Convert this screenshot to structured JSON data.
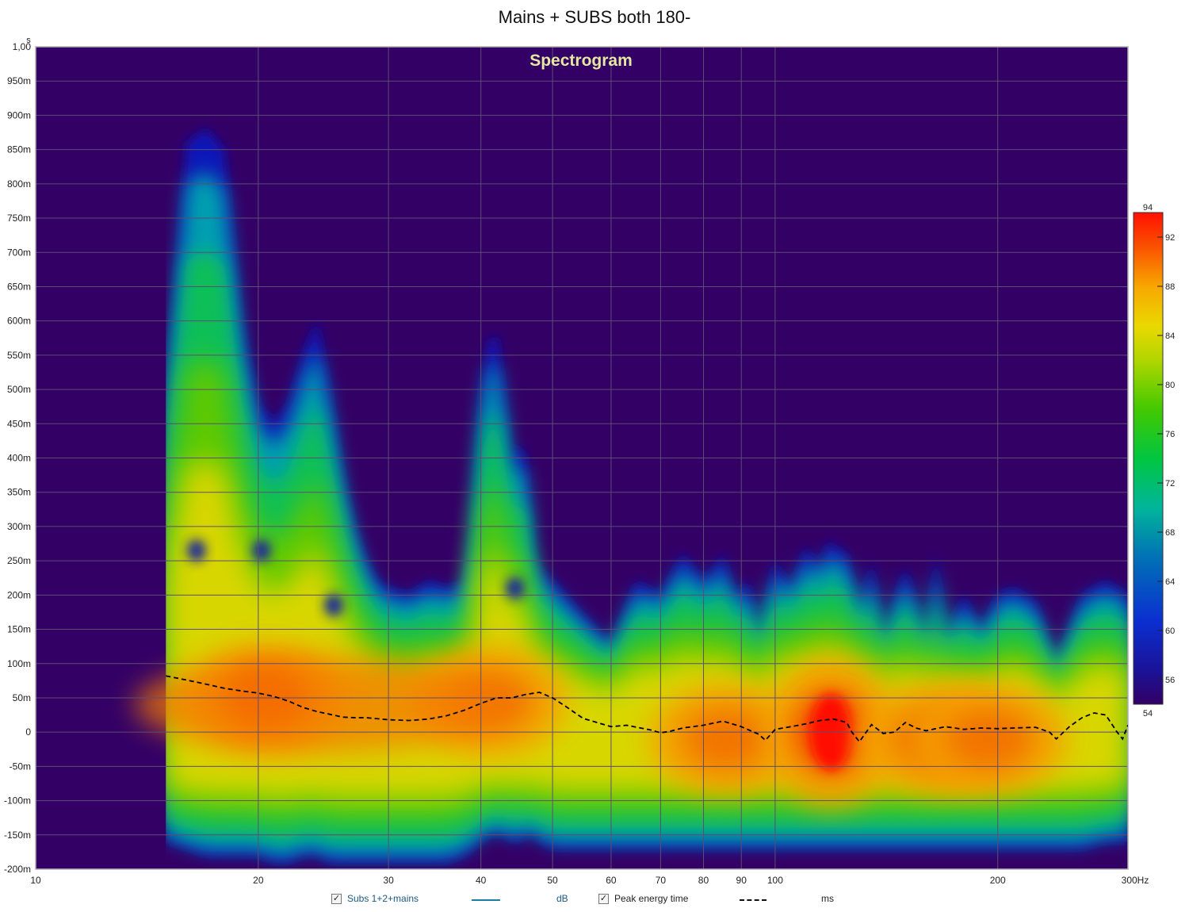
{
  "chart_data": {
    "type": "heatmap",
    "title": "Mains + SUBS both 180-",
    "inner_title": "Spectrogram",
    "xlabel": "Hz",
    "ylabel": "s",
    "xscale": "log",
    "xlim": [
      10,
      300
    ],
    "ylim": [
      -0.2,
      1.0
    ],
    "x_ticks": [
      10,
      20,
      30,
      40,
      50,
      60,
      70,
      80,
      90,
      100,
      200,
      300
    ],
    "x_tick_labels": [
      "10",
      "20",
      "30",
      "40",
      "50",
      "60",
      "70",
      "80",
      "90",
      "100",
      "200",
      "300Hz"
    ],
    "y_ticks": [
      1.0,
      0.95,
      0.9,
      0.85,
      0.8,
      0.75,
      0.7,
      0.65,
      0.6,
      0.55,
      0.5,
      0.45,
      0.4,
      0.35,
      0.3,
      0.25,
      0.2,
      0.15,
      0.1,
      0.05,
      0,
      -0.05,
      -0.1,
      -0.15,
      -0.2
    ],
    "y_tick_labels": [
      "1,00",
      "950m",
      "900m",
      "850m",
      "800m",
      "750m",
      "700m",
      "650m",
      "600m",
      "550m",
      "500m",
      "450m",
      "400m",
      "350m",
      "300m",
      "250m",
      "200m",
      "150m",
      "100m",
      "50m",
      "0",
      "-50m",
      "-100m",
      "-150m",
      "-200m"
    ],
    "colorbar": {
      "min": 54,
      "max": 94,
      "tick_labels": [
        "94",
        "92",
        "88",
        "84",
        "80",
        "76",
        "72",
        "68",
        "64",
        "60",
        "56",
        "54"
      ],
      "tick_values": [
        94,
        92,
        88,
        84,
        80,
        76,
        72,
        68,
        64,
        60,
        56,
        54
      ]
    },
    "decay_envelope": {
      "x": [
        15,
        16,
        17,
        18,
        19,
        20,
        21,
        22,
        23,
        24,
        25,
        26,
        27,
        28,
        29,
        30,
        32,
        34,
        36,
        38,
        39,
        40,
        41,
        42,
        43,
        44,
        45,
        46,
        47,
        48,
        50,
        55,
        60,
        65,
        70,
        75,
        80,
        84,
        85,
        88,
        92,
        95,
        100,
        105,
        110,
        115,
        118,
        120,
        125,
        130,
        135,
        140,
        150,
        160,
        165,
        170,
        180,
        190,
        200,
        210,
        225,
        240,
        260,
        280,
        300
      ],
      "top": [
        0.5,
        0.86,
        0.88,
        0.85,
        0.6,
        0.48,
        0.45,
        0.48,
        0.55,
        0.6,
        0.5,
        0.38,
        0.3,
        0.25,
        0.22,
        0.21,
        0.2,
        0.22,
        0.21,
        0.22,
        0.3,
        0.5,
        0.57,
        0.58,
        0.5,
        0.4,
        0.42,
        0.4,
        0.27,
        0.24,
        0.22,
        0.17,
        0.13,
        0.22,
        0.2,
        0.26,
        0.22,
        0.25,
        0.26,
        0.2,
        0.22,
        0.14,
        0.25,
        0.21,
        0.27,
        0.24,
        0.28,
        0.27,
        0.26,
        0.18,
        0.25,
        0.14,
        0.24,
        0.14,
        0.26,
        0.14,
        0.2,
        0.15,
        0.2,
        0.21,
        0.19,
        0.1,
        0.2,
        0.22,
        0.2
      ],
      "bottom": [
        -0.16,
        -0.17,
        -0.18,
        -0.18,
        -0.18,
        -0.18,
        -0.19,
        -0.19,
        -0.18,
        -0.18,
        -0.19,
        -0.19,
        -0.19,
        -0.19,
        -0.19,
        -0.19,
        -0.19,
        -0.19,
        -0.19,
        -0.18,
        -0.17,
        -0.16,
        -0.15,
        -0.15,
        -0.15,
        -0.16,
        -0.16,
        -0.15,
        -0.15,
        -0.16,
        -0.17,
        -0.17,
        -0.17,
        -0.17,
        -0.17,
        -0.17,
        -0.17,
        -0.17,
        -0.17,
        -0.17,
        -0.17,
        -0.17,
        -0.17,
        -0.17,
        -0.17,
        -0.17,
        -0.17,
        -0.17,
        -0.17,
        -0.17,
        -0.17,
        -0.17,
        -0.17,
        -0.17,
        -0.17,
        -0.17,
        -0.17,
        -0.17,
        -0.17,
        -0.17,
        -0.17,
        -0.17,
        -0.17,
        -0.16,
        -0.16
      ]
    },
    "hotspots": [
      {
        "x": 20.5,
        "t": 0.05,
        "level": 91
      },
      {
        "x": 41,
        "t": 0.045,
        "level": 89
      },
      {
        "x": 86,
        "t": -0.01,
        "level": 89
      },
      {
        "x": 119,
        "t": 0.0,
        "level": 93
      },
      {
        "x": 165,
        "t": -0.01,
        "level": 88
      },
      {
        "x": 195,
        "t": -0.01,
        "level": 88
      }
    ],
    "holes": [
      {
        "x": 16.5,
        "t": 0.265
      },
      {
        "x": 20.2,
        "t": 0.265
      },
      {
        "x": 25.3,
        "t": 0.185
      },
      {
        "x": 44.5,
        "t": 0.21
      }
    ],
    "series": [
      {
        "name": "Peak energy time",
        "style": "dashed",
        "color": "#000000",
        "x": [
          15,
          16,
          17,
          18,
          19,
          20,
          21,
          22,
          23,
          24,
          25,
          26,
          27,
          28,
          30,
          32,
          34,
          36,
          38,
          40,
          42,
          44,
          46,
          48,
          50,
          52,
          55,
          60,
          63,
          65,
          68,
          70,
          72,
          75,
          80,
          85,
          90,
          95,
          97,
          100,
          105,
          110,
          115,
          120,
          125,
          127,
          130,
          135,
          140,
          145,
          150,
          155,
          160,
          170,
          180,
          190,
          200,
          210,
          225,
          235,
          240,
          250,
          260,
          270,
          280,
          290,
          295,
          300
        ],
        "y": [
          0.082,
          0.076,
          0.07,
          0.064,
          0.06,
          0.057,
          0.052,
          0.045,
          0.036,
          0.03,
          0.026,
          0.022,
          0.021,
          0.021,
          0.018,
          0.017,
          0.019,
          0.024,
          0.032,
          0.042,
          0.05,
          0.05,
          0.055,
          0.058,
          0.05,
          0.038,
          0.02,
          0.008,
          0.01,
          0.007,
          0.003,
          -0.001,
          0.001,
          0.006,
          0.01,
          0.016,
          0.008,
          -0.003,
          -0.012,
          0.004,
          0.008,
          0.012,
          0.017,
          0.019,
          0.014,
          0.0,
          -0.014,
          0.011,
          -0.002,
          0.0,
          0.014,
          0.006,
          0.002,
          0.008,
          0.004,
          0.006,
          0.005,
          0.006,
          0.007,
          0.0,
          -0.01,
          0.008,
          0.021,
          0.028,
          0.025,
          0.0,
          -0.01,
          0.01
        ]
      },
      {
        "name": "Subs 1+2+mains",
        "color": "#1a7fa3",
        "unit": "dB"
      }
    ],
    "legend": [
      {
        "label": "Subs 1+2+mains",
        "checked": true,
        "unit": "dB"
      },
      {
        "label": "Peak energy time",
        "checked": true,
        "unit": "ms"
      }
    ],
    "legend_placement": "bottom",
    "grid": true
  },
  "colors": {
    "background": "#330066",
    "grid": "#5d4d74",
    "inner_title": "#e5e8a0",
    "legend_text": "#1a5a84"
  }
}
